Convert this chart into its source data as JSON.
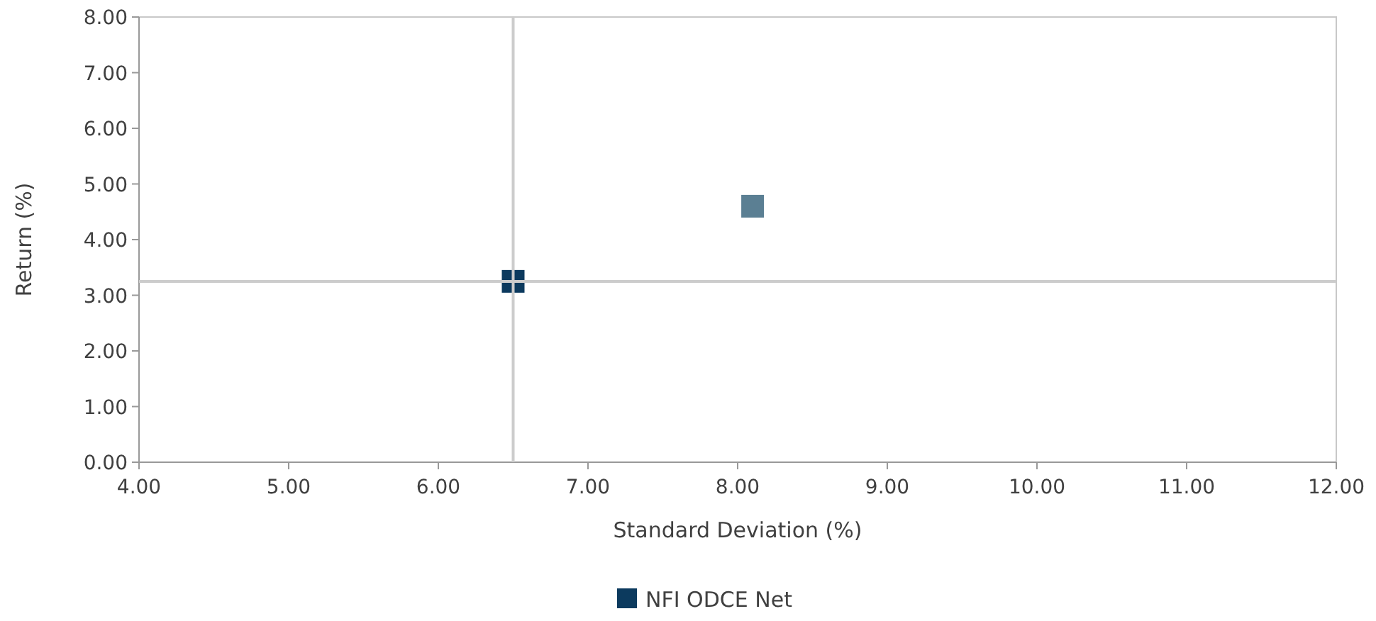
{
  "chart_data": {
    "type": "scatter",
    "xlabel": "Standard Deviation (%)",
    "ylabel": "Return  (%)",
    "series": [
      {
        "color": "#5b7f93",
        "x": [
          8.1
        ],
        "values": [
          4.6
        ]
      },
      {
        "name": "NFI ODCE Net",
        "color": "#0c3a5e",
        "x": [
          6.5
        ],
        "values": [
          3.25
        ]
      }
    ],
    "xlim": [
      4,
      12
    ],
    "ylim": [
      0,
      8
    ],
    "xticks": [
      {
        "value": 4,
        "label": "4.00"
      },
      {
        "value": 5,
        "label": "5.00"
      },
      {
        "value": 6,
        "label": "6.00"
      },
      {
        "value": 7,
        "label": "7.00"
      },
      {
        "value": 8,
        "label": "8.00"
      },
      {
        "value": 9,
        "label": "9.00"
      },
      {
        "value": 10,
        "label": "10.00"
      },
      {
        "value": 11,
        "label": "11.00"
      },
      {
        "value": 12,
        "label": "12.00"
      }
    ],
    "yticks": [
      {
        "value": 0,
        "label": "0.00"
      },
      {
        "value": 1,
        "label": "1.00"
      },
      {
        "value": 2,
        "label": "2.00"
      },
      {
        "value": 3,
        "label": "3.00"
      },
      {
        "value": 4,
        "label": "4.00"
      },
      {
        "value": 5,
        "label": "5.00"
      },
      {
        "value": 6,
        "label": "6.00"
      },
      {
        "value": 7,
        "label": "7.00"
      },
      {
        "value": 8,
        "label": "8.00"
      }
    ],
    "ref_lines": [
      {
        "axis": "x",
        "value": 6.5,
        "color": "#cccccc"
      },
      {
        "axis": "y",
        "value": 3.25,
        "color": "#cccccc"
      }
    ],
    "marker": "square",
    "legend": "bottom"
  }
}
